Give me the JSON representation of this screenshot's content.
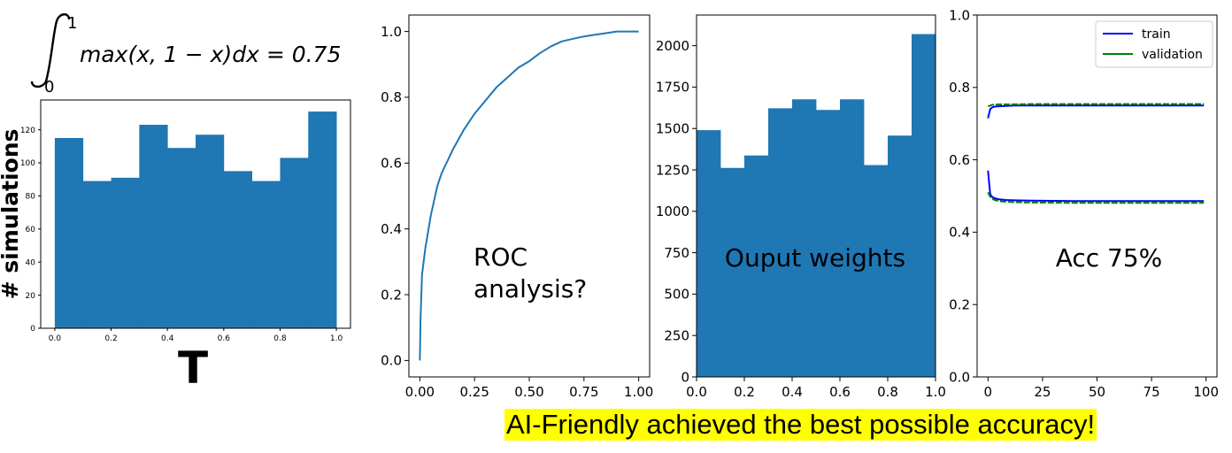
{
  "formula": {
    "upper_limit": "1",
    "lower_limit": "0",
    "integrand": "max(x, 1 − x)dx = 0.75"
  },
  "caption": "AI-Friendly achieved the best possible accuracy!",
  "chart_data": [
    {
      "type": "bar",
      "title": "",
      "xlabel": "T",
      "ylabel": "# simulations",
      "bin_edges": [
        0.0,
        0.1,
        0.2,
        0.3,
        0.4,
        0.5,
        0.6,
        0.7,
        0.8,
        0.9,
        1.0
      ],
      "values": [
        115,
        89,
        91,
        123,
        109,
        117,
        95,
        89,
        103,
        131
      ],
      "xlim": [
        -0.05,
        1.05
      ],
      "ylim": [
        0,
        138
      ],
      "xticks": [
        "0.0",
        "0.2",
        "0.4",
        "0.6",
        "0.8",
        "1.0"
      ],
      "yticks": [
        "0",
        "20",
        "40",
        "60",
        "80",
        "100",
        "120"
      ],
      "color": "#1f77b4"
    },
    {
      "type": "line",
      "title": "",
      "annotation": "ROC\nanalysis?",
      "x": [
        0.0,
        0.003,
        0.01,
        0.025,
        0.05,
        0.08,
        0.1,
        0.15,
        0.2,
        0.25,
        0.3,
        0.35,
        0.4,
        0.45,
        0.5,
        0.55,
        0.6,
        0.65,
        0.7,
        0.75,
        0.8,
        0.85,
        0.9,
        0.95,
        1.0
      ],
      "y": [
        0.0,
        0.12,
        0.26,
        0.34,
        0.44,
        0.53,
        0.57,
        0.64,
        0.7,
        0.75,
        0.79,
        0.83,
        0.86,
        0.89,
        0.91,
        0.935,
        0.955,
        0.97,
        0.978,
        0.985,
        0.99,
        0.995,
        1.0,
        1.0,
        1.0
      ],
      "xlim": [
        -0.05,
        1.05
      ],
      "ylim": [
        -0.05,
        1.05
      ],
      "xticks": [
        "0.00",
        "0.25",
        "0.50",
        "0.75",
        "1.00"
      ],
      "yticks": [
        "0.0",
        "0.2",
        "0.4",
        "0.6",
        "0.8",
        "1.0"
      ],
      "color": "#1f77b4"
    },
    {
      "type": "bar",
      "title": "",
      "annotation": "Ouput weights",
      "bin_edges": [
        0.0,
        0.1,
        0.2,
        0.3,
        0.4,
        0.5,
        0.6,
        0.7,
        0.8,
        0.9,
        1.0
      ],
      "values": [
        1490,
        1262,
        1337,
        1622,
        1676,
        1612,
        1676,
        1279,
        1457,
        2070
      ],
      "xlim": [
        0,
        1
      ],
      "ylim": [
        0,
        2185
      ],
      "xticks": [
        "0.0",
        "0.2",
        "0.4",
        "0.6",
        "0.8",
        "1.0"
      ],
      "yticks": [
        "0",
        "250",
        "500",
        "750",
        "1000",
        "1250",
        "1500",
        "1750",
        "2000"
      ],
      "color": "#1f77b4"
    },
    {
      "type": "line",
      "title": "",
      "annotation": "Acc 75%",
      "legend": "top-right",
      "xlim": [
        -5,
        105
      ],
      "ylim": [
        0.0,
        1.0
      ],
      "xticks": [
        "0",
        "25",
        "50",
        "75",
        "100"
      ],
      "yticks": [
        "0.0",
        "0.2",
        "0.4",
        "0.6",
        "0.8",
        "1.0"
      ],
      "series": [
        {
          "name": "train",
          "color": "#0000ff",
          "x": [
            0,
            1,
            2,
            3,
            5,
            8,
            12,
            20,
            40,
            60,
            80,
            99
          ],
          "y": [
            0.715,
            0.74,
            0.745,
            0.747,
            0.748,
            0.749,
            0.75,
            0.75,
            0.75,
            0.75,
            0.75,
            0.75
          ]
        },
        {
          "name": "",
          "color": "#0000ff",
          "x": [
            0,
            1,
            2,
            3,
            5,
            8,
            12,
            20,
            40,
            60,
            80,
            99
          ],
          "y": [
            0.57,
            0.505,
            0.497,
            0.494,
            0.491,
            0.489,
            0.488,
            0.487,
            0.486,
            0.486,
            0.486,
            0.486
          ]
        },
        {
          "name": "validation",
          "color": "#008000",
          "x": [
            0,
            1,
            2,
            3,
            5,
            8,
            12,
            20,
            40,
            60,
            80,
            99
          ],
          "y": [
            0.748,
            0.75,
            0.752,
            0.752,
            0.753,
            0.753,
            0.753,
            0.754,
            0.754,
            0.754,
            0.754,
            0.754
          ]
        },
        {
          "name": "",
          "color": "#008000",
          "x": [
            0,
            1,
            2,
            3,
            5,
            8,
            12,
            20,
            40,
            60,
            80,
            99
          ],
          "y": [
            0.51,
            0.498,
            0.492,
            0.489,
            0.486,
            0.484,
            0.483,
            0.482,
            0.481,
            0.481,
            0.481,
            0.481
          ]
        }
      ]
    }
  ]
}
